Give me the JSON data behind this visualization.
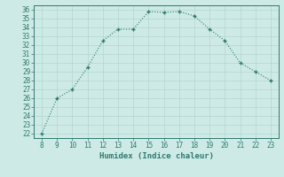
{
  "x": [
    8,
    9,
    10,
    11,
    12,
    13,
    14,
    15,
    16,
    17,
    18,
    19,
    20,
    21,
    22,
    23
  ],
  "y": [
    22,
    26,
    27,
    29.5,
    32.5,
    33.8,
    33.8,
    35.8,
    35.7,
    35.8,
    35.3,
    33.8,
    32.5,
    30,
    29,
    28
  ],
  "xlabel": "Humidex (Indice chaleur)",
  "xlim": [
    7.5,
    23.5
  ],
  "ylim": [
    21.5,
    36.5
  ],
  "yticks": [
    22,
    23,
    24,
    25,
    26,
    27,
    28,
    29,
    30,
    31,
    32,
    33,
    34,
    35,
    36
  ],
  "xticks": [
    8,
    9,
    10,
    11,
    12,
    13,
    14,
    15,
    16,
    17,
    18,
    19,
    20,
    21,
    22,
    23
  ],
  "line_color": "#2d7a6e",
  "marker": "+",
  "bg_color": "#ceeae6",
  "grid_color": "#b5d5d0",
  "spine_color": "#2d7a6e",
  "tick_color": "#2d7a6e",
  "label_fontsize": 5.5,
  "xlabel_fontsize": 6.5
}
